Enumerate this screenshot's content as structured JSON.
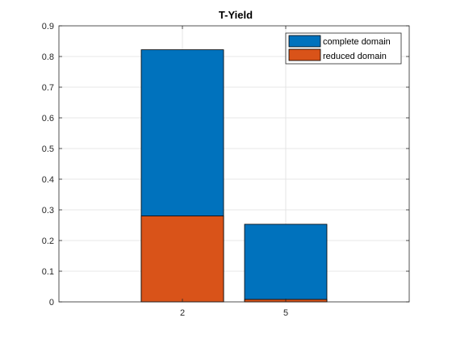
{
  "chart_data": {
    "type": "bar",
    "title": "T-Yield",
    "xlabel": "",
    "ylabel": "",
    "categories": [
      "2",
      "5"
    ],
    "ylim": [
      0,
      0.9
    ],
    "yticks": [
      0,
      0.1,
      0.2,
      0.3,
      0.4,
      0.5,
      0.6,
      0.7,
      0.8,
      0.9
    ],
    "grid": true,
    "legend_position": "top-right",
    "overlay": true,
    "series": [
      {
        "name": "complete domain",
        "values": [
          0.822,
          0.253
        ],
        "color": "#0072BD"
      },
      {
        "name": "reduced domain",
        "values": [
          0.28,
          0.008
        ],
        "color": "#D95319"
      }
    ]
  }
}
